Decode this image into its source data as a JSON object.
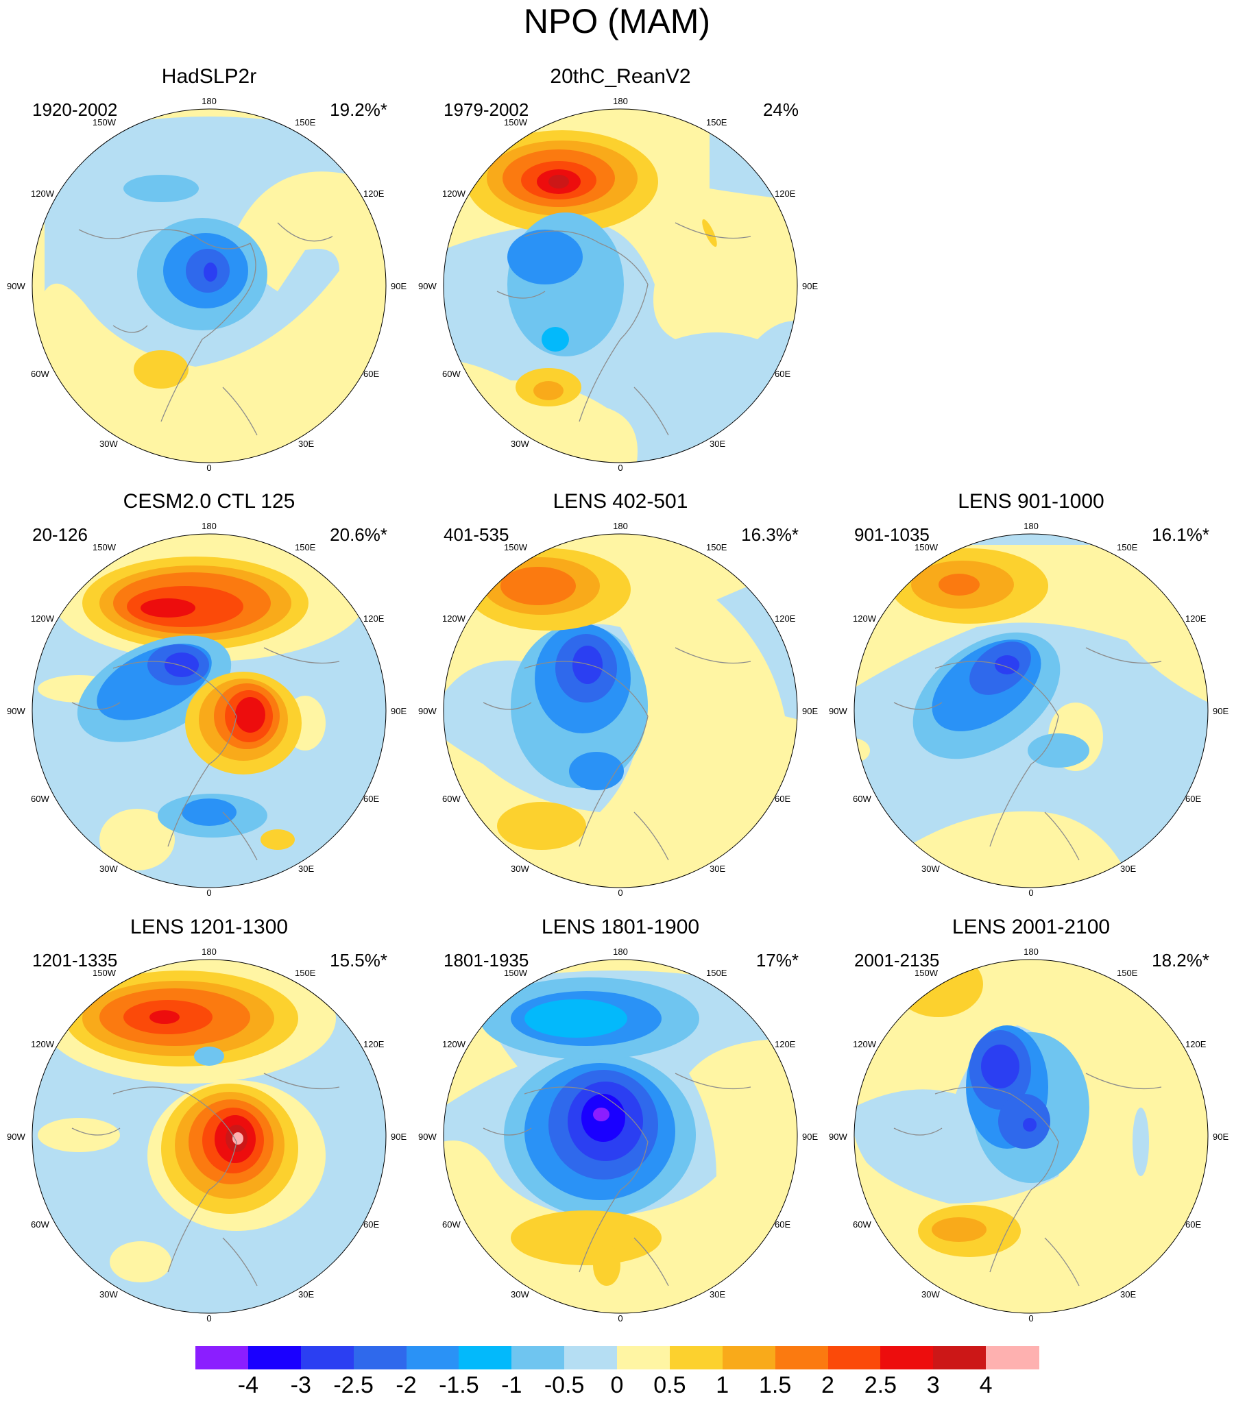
{
  "title": "NPO (MAM)",
  "colors": {
    "n4": "#8b1eff",
    "n3_5": "#1a00ff",
    "n3": "#2b3ff2",
    "n2_5": "#2f69ec",
    "n2": "#2a92f6",
    "n1_5": "#03b9fb",
    "n1": "#6fc5f0",
    "n0_5": "#b5def3",
    "p0": "#fff5a3",
    "p0_5": "#fcd12e",
    "p1": "#f9aa1a",
    "p1_5": "#fb7a10",
    "p2": "#fb4a09",
    "p2_5": "#ed0d0d",
    "p3": "#cc1717",
    "p4": "#feb1b0",
    "coast": "#8c8c8c"
  },
  "lon_labels": [
    "180",
    "150E",
    "120E",
    "90E",
    "60E",
    "30E",
    "0",
    "30W",
    "60W",
    "90W",
    "120W",
    "150W"
  ],
  "panels": [
    {
      "title": "HadSLP2r",
      "range": "1920-2002",
      "variance": "19.2%*"
    },
    {
      "title": "20thC_ReanV2",
      "range": "1979-2002",
      "variance": "24%"
    },
    {
      "title": "CESM2.0 CTL 125",
      "range": "20-126",
      "variance": "20.6%*"
    },
    {
      "title": "LENS 402-501",
      "range": "401-535",
      "variance": "16.3%*"
    },
    {
      "title": "LENS 901-1000",
      "range": "901-1035",
      "variance": "16.1%*"
    },
    {
      "title": "LENS 1201-1300",
      "range": "1201-1335",
      "variance": "15.5%*"
    },
    {
      "title": "LENS 1801-1900",
      "range": "1801-1935",
      "variance": "17%*"
    },
    {
      "title": "LENS 2001-2100",
      "range": "2001-2135",
      "variance": "18.2%*"
    }
  ],
  "colorbar": {
    "labels": [
      "-4",
      "-3",
      "-2.5",
      "-2",
      "-1.5",
      "-1",
      "-0.5",
      "0",
      "0.5",
      "1",
      "1.5",
      "2",
      "2.5",
      "3",
      "4"
    ],
    "colors": [
      "#8b1eff",
      "#1a00ff",
      "#2b3ff2",
      "#2f69ec",
      "#2a92f6",
      "#03b9fb",
      "#6fc5f0",
      "#b5def3",
      "#fff5a3",
      "#fcd12e",
      "#f9aa1a",
      "#fb7a10",
      "#fb4a09",
      "#ed0d0d",
      "#cc1717",
      "#feb1b0"
    ]
  }
}
